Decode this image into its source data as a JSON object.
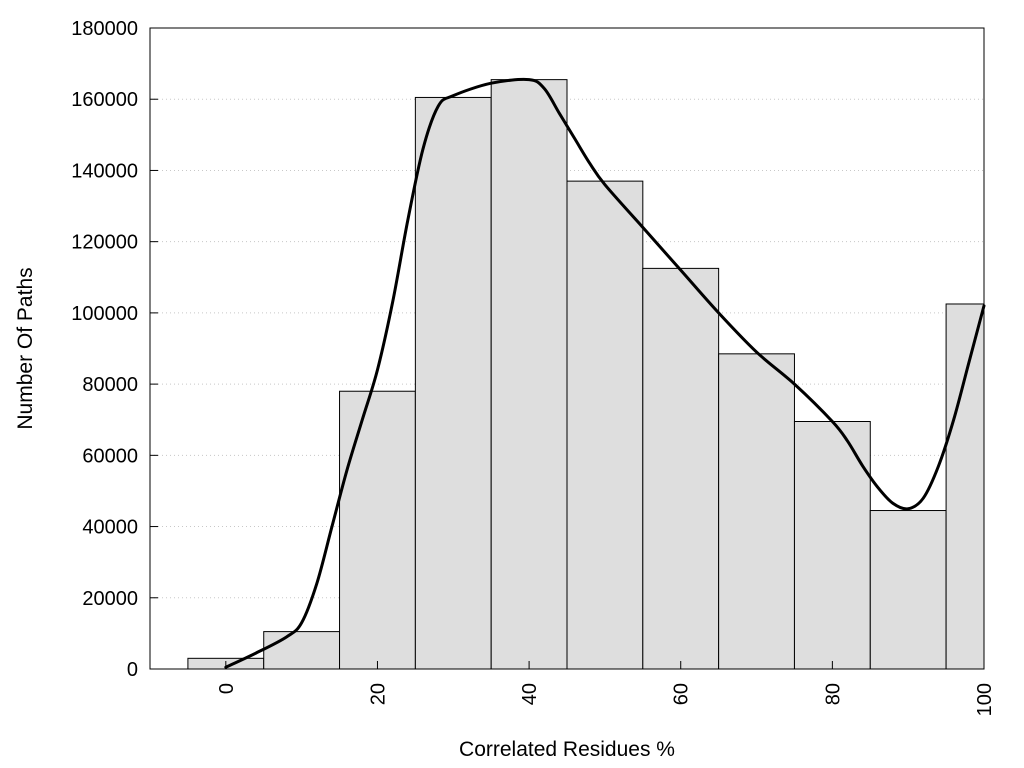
{
  "chart_data": {
    "type": "bar",
    "title": "",
    "xlabel": "Correlated Residues %",
    "ylabel": "Number Of Paths",
    "xlim": [
      -10,
      100
    ],
    "ylim": [
      0,
      180000
    ],
    "x_ticks": [
      0,
      20,
      40,
      60,
      80,
      100
    ],
    "x_tick_labels": [
      "0",
      "20",
      "40",
      "60",
      "80",
      "100"
    ],
    "y_ticks": [
      0,
      20000,
      40000,
      60000,
      80000,
      100000,
      120000,
      140000,
      160000,
      180000
    ],
    "y_tick_labels": [
      "0",
      "20000",
      "40000",
      "60000",
      "80000",
      "100000",
      "120000",
      "140000",
      "160000",
      "180000"
    ],
    "grid": "horizontal dotted",
    "bin_width": 10,
    "categories": [
      0,
      10,
      20,
      30,
      40,
      50,
      60,
      70,
      80,
      90,
      100
    ],
    "values": [
      3000,
      10500,
      78000,
      160500,
      165500,
      137000,
      112500,
      88500,
      69500,
      44500,
      102500
    ],
    "trend_curve": {
      "x": [
        0,
        4,
        8,
        10,
        12,
        14,
        16,
        18,
        20,
        22,
        24,
        26,
        28,
        30,
        35,
        40,
        42,
        44,
        46,
        48,
        50,
        55,
        60,
        65,
        70,
        75,
        80,
        82,
        84,
        86,
        88,
        90,
        92,
        94,
        96,
        98,
        100
      ],
      "y": [
        500,
        4500,
        9000,
        13000,
        24000,
        40000,
        56000,
        70000,
        84000,
        103000,
        126000,
        146000,
        158000,
        161000,
        164500,
        165500,
        163000,
        156000,
        149000,
        142000,
        136000,
        124000,
        112000,
        100000,
        89000,
        80000,
        69500,
        64000,
        57000,
        51000,
        46500,
        45000,
        48000,
        57000,
        70000,
        86000,
        102000
      ]
    },
    "bar_fill": "#dedede",
    "bar_stroke": "#000000",
    "curve_color": "#000000"
  }
}
